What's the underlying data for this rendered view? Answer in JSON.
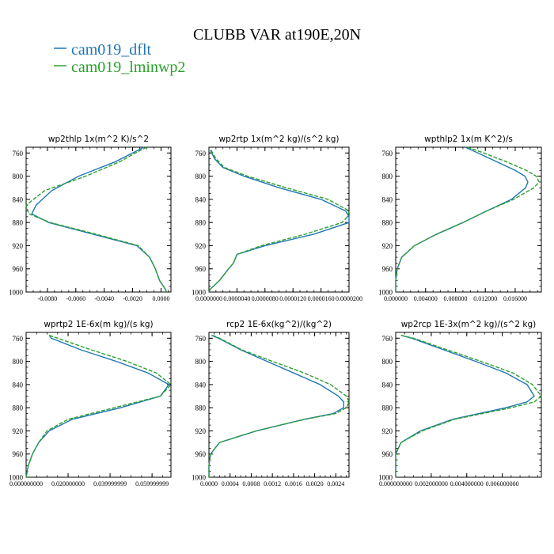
{
  "figure": {
    "title": "CLUBB VAR at190E,20N",
    "colors": {
      "dflt": "#1f77b4",
      "lminwp2": "#2ca02c",
      "axis": "#000000"
    },
    "legend": [
      {
        "name": "cam019_dflt",
        "color": "#1f77b4",
        "style": "solid"
      },
      {
        "name": "cam019_lminwp2",
        "color": "#2ca02c",
        "style": "dashed"
      }
    ]
  },
  "chart_data": [
    {
      "type": "line",
      "title": "wp2thlp   1x(m^2 K)/s^2",
      "ylim": [
        1000,
        750
      ],
      "yticks": [
        760,
        800,
        840,
        880,
        920,
        960,
        1000
      ],
      "xlim": [
        -0.0095,
        0.0007
      ],
      "xticks": [
        -0.008,
        -0.006,
        -0.004,
        -0.002,
        0.0
      ],
      "xtick_labels": [
        "-0.0080",
        "-0.0060",
        "-0.0040",
        "-0.0020",
        "0.0000"
      ],
      "series": [
        {
          "name": "cam019_dflt",
          "y": [
            750,
            760,
            775,
            800,
            825,
            850,
            865,
            880,
            900,
            920,
            940,
            960,
            980,
            995,
            1000
          ],
          "x": [
            -0.0012,
            -0.002,
            -0.0032,
            -0.0058,
            -0.0077,
            -0.0088,
            -0.0091,
            -0.0079,
            -0.0048,
            -0.0017,
            -0.0008,
            -0.0004,
            -0.0001,
            0.0003,
            0.0004
          ]
        },
        {
          "name": "cam019_lminwp2",
          "y": [
            750,
            760,
            775,
            800,
            825,
            850,
            865,
            880,
            900,
            920,
            940,
            960,
            980,
            995,
            1000
          ],
          "x": [
            -0.001,
            -0.0018,
            -0.0029,
            -0.0053,
            -0.0082,
            -0.0095,
            -0.0093,
            -0.0078,
            -0.0046,
            -0.0016,
            -0.0008,
            -0.0004,
            -0.0001,
            0.0003,
            0.0004
          ]
        }
      ]
    },
    {
      "type": "line",
      "title": "wp2rtp   1x(m^2 kg)/(s^2 kg)",
      "ylim": [
        1000,
        750
      ],
      "yticks": [
        760,
        800,
        840,
        880,
        920,
        960,
        1000
      ],
      "xlim": [
        0.0,
        2e-05
      ],
      "xticks": [
        0.0,
        4e-06,
        8e-06,
        1.2e-05,
        1.6e-05,
        2e-05
      ],
      "xtick_labels": [
        "0.0000000",
        "0.0000040",
        "0.0000080",
        "0.0000120",
        "0.0000160",
        "0.0000200"
      ],
      "series": [
        {
          "name": "cam019_dflt",
          "y": [
            755,
            770,
            785,
            800,
            820,
            840,
            860,
            870,
            880,
            900,
            920,
            935,
            950,
            960,
            980,
            995,
            1000
          ],
          "x": [
            2e-07,
            8e-07,
            2e-06,
            5e-06,
            1e-05,
            1.6e-05,
            1.95e-05,
            2e-05,
            2e-05,
            1.5e-05,
            8e-06,
            4e-06,
            3.5e-06,
            2.8e-06,
            1.5e-06,
            2e-07,
            0.0
          ]
        },
        {
          "name": "cam019_lminwp2",
          "y": [
            755,
            770,
            785,
            800,
            820,
            840,
            860,
            870,
            880,
            900,
            920,
            935,
            950,
            960,
            980,
            995,
            1000
          ],
          "x": [
            3e-07,
            1e-06,
            2.2e-06,
            5.5e-06,
            1.1e-05,
            1.7e-05,
            2e-05,
            1.98e-05,
            1.9e-05,
            1.38e-05,
            7.5e-06,
            4e-06,
            3.5e-06,
            2.8e-06,
            1.5e-06,
            2e-07,
            0.0
          ]
        }
      ]
    },
    {
      "type": "line",
      "title": "wpthlp2   1x(m K^2)/s",
      "ylim": [
        1000,
        750
      ],
      "yticks": [
        760,
        800,
        840,
        880,
        920,
        960,
        1000
      ],
      "xlim": [
        0.0,
        0.0195
      ],
      "xticks": [
        0.0,
        0.004,
        0.008,
        0.012,
        0.016
      ],
      "xtick_labels": [
        "0.000000",
        "0.004000",
        "0.008000",
        "0.012000",
        "0.016000"
      ],
      "series": [
        {
          "name": "cam019_dflt",
          "y": [
            750,
            760,
            775,
            790,
            800,
            810,
            820,
            840,
            860,
            880,
            900,
            920,
            940,
            960,
            980,
            1000
          ],
          "x": [
            0.0093,
            0.011,
            0.0135,
            0.016,
            0.0173,
            0.0177,
            0.0174,
            0.0155,
            0.0122,
            0.009,
            0.0055,
            0.0025,
            0.0008,
            0.0002,
            0.0,
            0.0
          ]
        },
        {
          "name": "cam019_lminwp2",
          "y": [
            750,
            760,
            775,
            790,
            800,
            810,
            820,
            840,
            860,
            880,
            900,
            920,
            940,
            960,
            980,
            1000
          ],
          "x": [
            0.0096,
            0.0118,
            0.0148,
            0.0175,
            0.0188,
            0.0192,
            0.0185,
            0.0158,
            0.0122,
            0.009,
            0.0055,
            0.0025,
            0.0008,
            0.0002,
            0.0,
            0.0
          ]
        }
      ]
    },
    {
      "type": "line",
      "title": "wprtp2   1E-6x(m kg)/(s kg)",
      "ylim": [
        1000,
        750
      ],
      "yticks": [
        760,
        800,
        840,
        880,
        920,
        960,
        1000
      ],
      "xlim": [
        0.0,
        0.069
      ],
      "xticks": [
        0.0,
        0.02,
        0.04,
        0.06
      ],
      "xtick_labels": [
        "0.000000000",
        "0.020000000",
        "0.039999999",
        "0.059999999"
      ],
      "series": [
        {
          "name": "cam019_dflt",
          "y": [
            755,
            760,
            780,
            800,
            820,
            840,
            860,
            880,
            900,
            920,
            940,
            960,
            980,
            1000
          ],
          "x": [
            0.011,
            0.012,
            0.026,
            0.043,
            0.058,
            0.068,
            0.064,
            0.045,
            0.022,
            0.011,
            0.006,
            0.003,
            0.001,
            0.0
          ]
        },
        {
          "name": "cam019_lminwp2",
          "y": [
            755,
            760,
            780,
            800,
            820,
            840,
            860,
            880,
            900,
            920,
            940,
            960,
            980,
            1000
          ],
          "x": [
            0.011,
            0.015,
            0.031,
            0.048,
            0.062,
            0.069,
            0.064,
            0.042,
            0.02,
            0.01,
            0.006,
            0.003,
            0.001,
            0.0
          ]
        }
      ]
    },
    {
      "type": "line",
      "title": "rcp2   1E-6x(kg^2)/(kg^2)",
      "ylim": [
        1000,
        750
      ],
      "yticks": [
        760,
        800,
        840,
        880,
        920,
        960,
        1000
      ],
      "xlim": [
        0.0,
        0.00265
      ],
      "xticks": [
        0.0,
        0.0004,
        0.0008,
        0.0012,
        0.0016,
        0.002,
        0.0024
      ],
      "xtick_labels": [
        "0.0000",
        "0.0004",
        "0.0008",
        "0.0012",
        "0.0016",
        "0.0020",
        "0.0024"
      ],
      "series": [
        {
          "name": "cam019_dflt",
          "y": [
            755,
            760,
            780,
            800,
            820,
            840,
            860,
            870,
            880,
            890,
            900,
            920,
            940,
            960,
            980,
            1000
          ],
          "x": [
            5e-05,
            0.00018,
            0.0006,
            0.0011,
            0.0016,
            0.0021,
            0.00245,
            0.00255,
            0.00255,
            0.00235,
            0.0018,
            0.0009,
            0.0002,
            3e-05,
            0.0,
            0.0
          ]
        },
        {
          "name": "cam019_lminwp2",
          "y": [
            755,
            760,
            780,
            800,
            820,
            840,
            860,
            870,
            880,
            890,
            900,
            920,
            940,
            960,
            980,
            1000
          ],
          "x": [
            7e-05,
            0.0002,
            0.00062,
            0.0012,
            0.0018,
            0.0023,
            0.0026,
            0.00265,
            0.0026,
            0.0024,
            0.00182,
            0.0009,
            0.0002,
            3e-05,
            0.0,
            0.0
          ]
        }
      ]
    },
    {
      "type": "line",
      "title": "wp2rcp   1E-3x(m^2 kg)/(s^2 kg)",
      "ylim": [
        1000,
        750
      ],
      "yticks": [
        760,
        800,
        840,
        880,
        920,
        960,
        1000
      ],
      "xlim": [
        0.0,
        0.0082
      ],
      "xticks": [
        0.0,
        0.002,
        0.004,
        0.006
      ],
      "xtick_labels": [
        "0.000000000",
        "0.002000000",
        "0.004000000",
        "0.006000000"
      ],
      "series": [
        {
          "name": "cam019_dflt",
          "y": [
            755,
            760,
            780,
            800,
            820,
            840,
            860,
            870,
            880,
            900,
            920,
            940,
            960,
            980,
            1000
          ],
          "x": [
            0.0003,
            0.0009,
            0.0027,
            0.0045,
            0.0062,
            0.0074,
            0.0078,
            0.0074,
            0.0062,
            0.0032,
            0.0014,
            0.0003,
            0.0,
            0.0,
            0.0
          ]
        },
        {
          "name": "cam019_lminwp2",
          "y": [
            755,
            760,
            780,
            800,
            820,
            840,
            860,
            870,
            880,
            900,
            920,
            940,
            960,
            980,
            1000
          ],
          "x": [
            0.0003,
            0.001,
            0.0029,
            0.0048,
            0.0066,
            0.0077,
            0.0082,
            0.0078,
            0.0065,
            0.0033,
            0.0015,
            0.0003,
            0.0,
            0.0,
            0.0
          ]
        }
      ]
    }
  ]
}
